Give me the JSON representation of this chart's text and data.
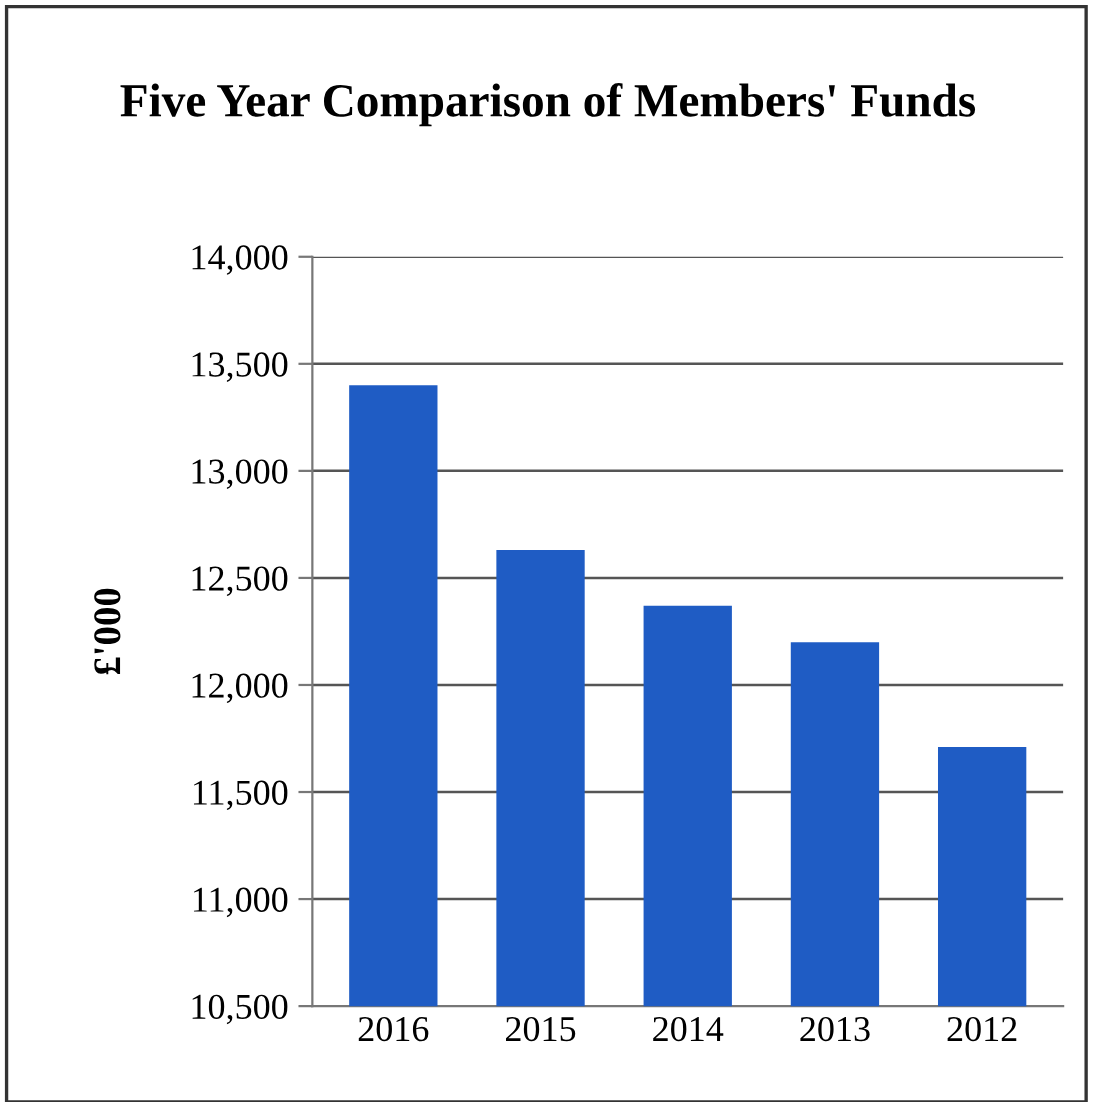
{
  "chart_data": {
    "type": "bar",
    "title": "Five Year Comparison of Members' Funds",
    "ylabel": "£'000",
    "categories": [
      "2016",
      "2015",
      "2014",
      "2013",
      "2012"
    ],
    "values": [
      13400,
      12630,
      12370,
      12200,
      11710
    ],
    "color": "#1f5cc4",
    "ylim": [
      10500,
      14000
    ],
    "yticks": [
      {
        "value": 10500,
        "label": "10,500"
      },
      {
        "value": 11000,
        "label": "11,000"
      },
      {
        "value": 11500,
        "label": "11,500"
      },
      {
        "value": 12000,
        "label": "12,000"
      },
      {
        "value": 12500,
        "label": "12,500"
      },
      {
        "value": 13000,
        "label": "13,000"
      },
      {
        "value": 13500,
        "label": "13,500"
      },
      {
        "value": 14000,
        "label": "14,000"
      }
    ],
    "grid": "y",
    "legend": false
  }
}
